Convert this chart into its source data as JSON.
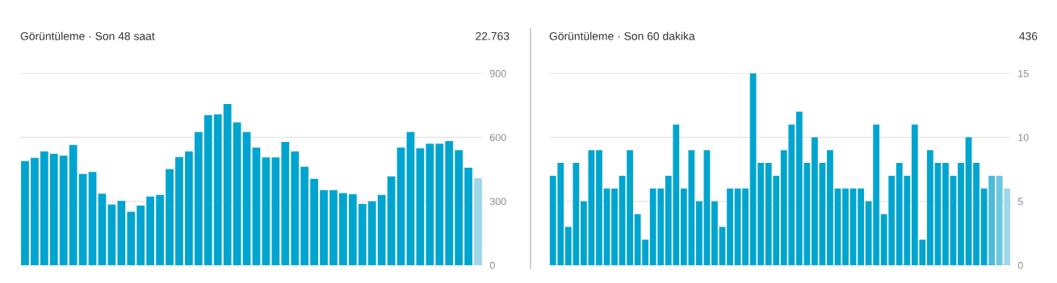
{
  "chart_data": [
    {
      "type": "bar",
      "title": "Görüntüleme · Son 48 saat",
      "annotations": [
        "22.763"
      ],
      "categories": [
        null,
        null,
        null,
        null,
        null,
        null,
        null,
        null,
        null,
        null,
        null,
        null,
        null,
        null,
        null,
        null,
        null,
        null,
        null,
        null,
        null,
        null,
        null,
        null,
        null,
        null,
        null,
        null,
        null,
        null,
        null,
        null,
        null,
        null,
        null,
        null,
        null,
        null,
        null,
        null,
        null,
        null,
        null,
        null,
        null,
        null,
        null,
        null
      ],
      "values": [
        489,
        504,
        534,
        523,
        514,
        564,
        428,
        438,
        336,
        285,
        302,
        251,
        280,
        322,
        330,
        451,
        508,
        534,
        625,
        704,
        708,
        756,
        670,
        625,
        552,
        506,
        506,
        579,
        534,
        462,
        406,
        353,
        353,
        338,
        334,
        288,
        300,
        330,
        417,
        552,
        625,
        548,
        570,
        570,
        582,
        540,
        458,
        408
      ],
      "colors": [
        "#00a5cf",
        "#00a5cf",
        "#00a5cf",
        "#00a5cf",
        "#00a5cf",
        "#00a5cf",
        "#00a5cf",
        "#00a5cf",
        "#00a5cf",
        "#00a5cf",
        "#00a5cf",
        "#00a5cf",
        "#00a5cf",
        "#00a5cf",
        "#00a5cf",
        "#00a5cf",
        "#00a5cf",
        "#00a5cf",
        "#00a5cf",
        "#00a5cf",
        "#00a5cf",
        "#00a5cf",
        "#00a5cf",
        "#00a5cf",
        "#00a5cf",
        "#00a5cf",
        "#00a5cf",
        "#00a5cf",
        "#00a5cf",
        "#00a5cf",
        "#00a5cf",
        "#00a5cf",
        "#00a5cf",
        "#00a5cf",
        "#00a5cf",
        "#00a5cf",
        "#00a5cf",
        "#00a5cf",
        "#00a5cf",
        "#00a5cf",
        "#00a5cf",
        "#00a5cf",
        "#00a5cf",
        "#00a5cf",
        "#00a5cf",
        "#00a5cf",
        "#00a5cf",
        "#9fd8ea"
      ],
      "ylim": [
        0,
        900
      ],
      "yticks": [
        0,
        300,
        600,
        900
      ],
      "grid": "y",
      "legend": false
    },
    {
      "type": "bar",
      "title": "Görüntüleme · Son 60 dakika",
      "annotations": [
        "436"
      ],
      "categories": [
        null,
        null,
        null,
        null,
        null,
        null,
        null,
        null,
        null,
        null,
        null,
        null,
        null,
        null,
        null,
        null,
        null,
        null,
        null,
        null,
        null,
        null,
        null,
        null,
        null,
        null,
        null,
        null,
        null,
        null,
        null,
        null,
        null,
        null,
        null,
        null,
        null,
        null,
        null,
        null,
        null,
        null,
        null,
        null,
        null,
        null,
        null,
        null,
        null,
        null,
        null,
        null,
        null,
        null,
        null,
        null,
        null,
        null,
        null,
        null
      ],
      "values": [
        7,
        8,
        3,
        8,
        5,
        9,
        9,
        6,
        6,
        7,
        9,
        4,
        2,
        6,
        6,
        7,
        11,
        6,
        9,
        5,
        9,
        5,
        3,
        6,
        6,
        6,
        15,
        8,
        8,
        7,
        9,
        11,
        12,
        8,
        10,
        8,
        9,
        6,
        6,
        6,
        6,
        5,
        11,
        4,
        7,
        8,
        7,
        11,
        2,
        9,
        8,
        8,
        7,
        8,
        10,
        8,
        6,
        7,
        7,
        6
      ],
      "colors": [
        "#00a5cf",
        "#00a5cf",
        "#00a5cf",
        "#00a5cf",
        "#00a5cf",
        "#00a5cf",
        "#00a5cf",
        "#00a5cf",
        "#00a5cf",
        "#00a5cf",
        "#00a5cf",
        "#00a5cf",
        "#00a5cf",
        "#00a5cf",
        "#00a5cf",
        "#00a5cf",
        "#00a5cf",
        "#00a5cf",
        "#00a5cf",
        "#00a5cf",
        "#00a5cf",
        "#00a5cf",
        "#00a5cf",
        "#00a5cf",
        "#00a5cf",
        "#00a5cf",
        "#00a5cf",
        "#00a5cf",
        "#00a5cf",
        "#00a5cf",
        "#00a5cf",
        "#00a5cf",
        "#00a5cf",
        "#00a5cf",
        "#00a5cf",
        "#00a5cf",
        "#00a5cf",
        "#00a5cf",
        "#00a5cf",
        "#00a5cf",
        "#00a5cf",
        "#00a5cf",
        "#00a5cf",
        "#00a5cf",
        "#00a5cf",
        "#00a5cf",
        "#00a5cf",
        "#00a5cf",
        "#00a5cf",
        "#00a5cf",
        "#00a5cf",
        "#00a5cf",
        "#00a5cf",
        "#00a5cf",
        "#00a5cf",
        "#00a5cf",
        "#00a5cf",
        "#4dbbda",
        "#6cc8e0",
        "#9fd8ea"
      ],
      "ylim": [
        0,
        15
      ],
      "yticks": [
        0,
        5,
        10,
        15
      ],
      "grid": "y",
      "legend": false
    }
  ]
}
